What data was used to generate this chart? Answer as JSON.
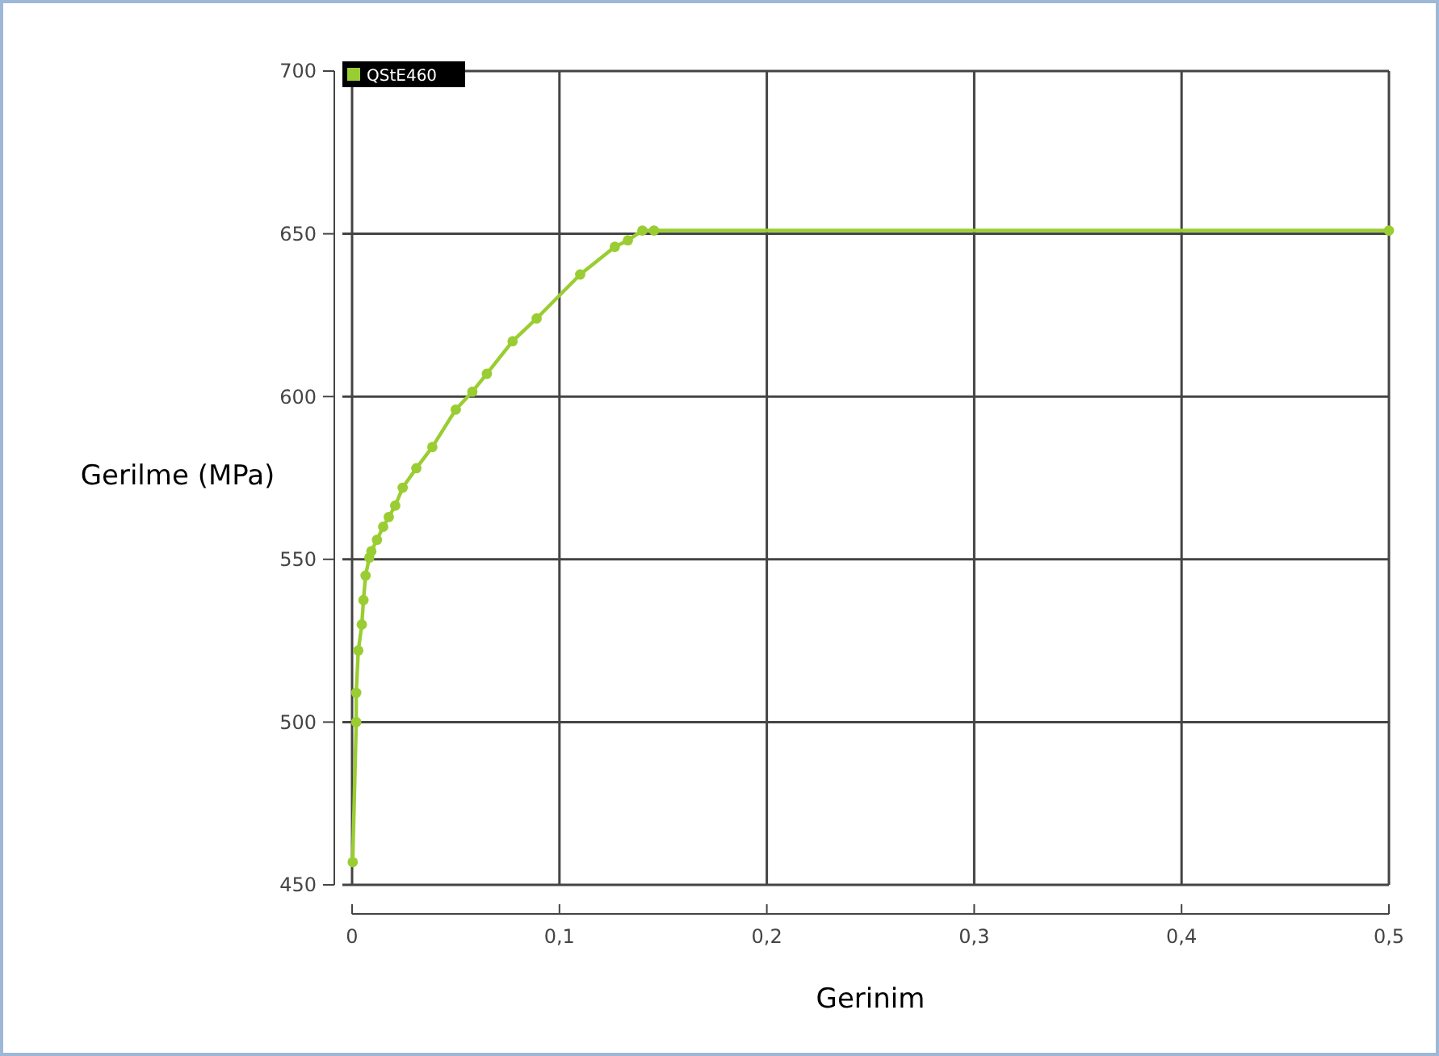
{
  "chart_data": {
    "type": "line",
    "xlabel": "Gerinim",
    "ylabel": "Gerilme (MPa)",
    "xlim": [
      0,
      0.5
    ],
    "ylim": [
      450,
      700
    ],
    "xticks": [
      0,
      {
        "value": 0.1,
        "label": "0,1"
      },
      {
        "value": 0.2,
        "label": "0,2"
      },
      {
        "value": 0.3,
        "label": "0,3"
      },
      {
        "value": 0.4,
        "label": "0,4"
      },
      {
        "value": 0.5,
        "label": "0,5"
      }
    ],
    "yticks": [
      450,
      500,
      550,
      600,
      650,
      700
    ],
    "grid": true,
    "legend": "top left",
    "marker": "circle",
    "line_style": "solid",
    "series": [
      {
        "name": "QStE460",
        "color": "#9acd32",
        "x": [
          0.0003,
          0.002,
          0.002,
          0.003,
          0.0047,
          0.0055,
          0.0065,
          0.0083,
          0.0093,
          0.012,
          0.015,
          0.0177,
          0.0208,
          0.0244,
          0.031,
          0.0387,
          0.05,
          0.058,
          0.065,
          0.0774,
          0.089,
          0.11,
          0.1267,
          0.133,
          0.14,
          0.1456,
          0.5
        ],
        "values": [
          457,
          500,
          509,
          522,
          530,
          537.5,
          545,
          550.5,
          552.5,
          556,
          560,
          563,
          566.5,
          572,
          578,
          584.5,
          596,
          601.5,
          607,
          617,
          624,
          637.5,
          646,
          648,
          651,
          651,
          651
        ]
      }
    ]
  }
}
